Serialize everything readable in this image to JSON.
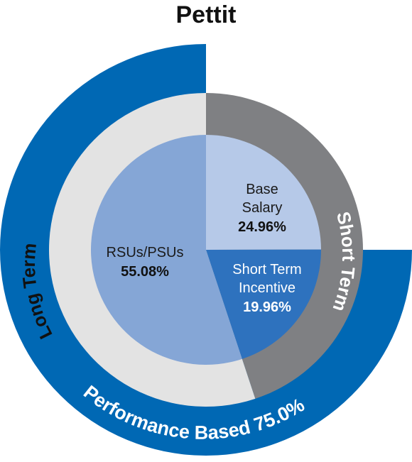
{
  "chart_data": {
    "type": "pie",
    "title": "Pettit",
    "inner": {
      "slices": [
        {
          "name": "Base",
          "name2": "Salary",
          "value": 24.96,
          "label": "24.96%",
          "color": "#b6c9e8"
        },
        {
          "name": "Short Term",
          "name2": "Incentive",
          "value": 19.96,
          "label": "19.96%",
          "color": "#2e72be"
        },
        {
          "name": "RSUs/PSUs",
          "name2": "",
          "value": 55.08,
          "label": "55.08%",
          "color": "#85a6d6"
        }
      ]
    },
    "middle": {
      "rings": [
        {
          "name": "Short Term",
          "value": 44.92,
          "color": "#7f8083"
        },
        {
          "name": "Long Term",
          "value": 55.08,
          "color": "#e3e3e3"
        }
      ]
    },
    "outer": {
      "arc": {
        "name": "Performance Based 75.0%",
        "value": 75.0,
        "color": "#0068b4"
      }
    }
  }
}
